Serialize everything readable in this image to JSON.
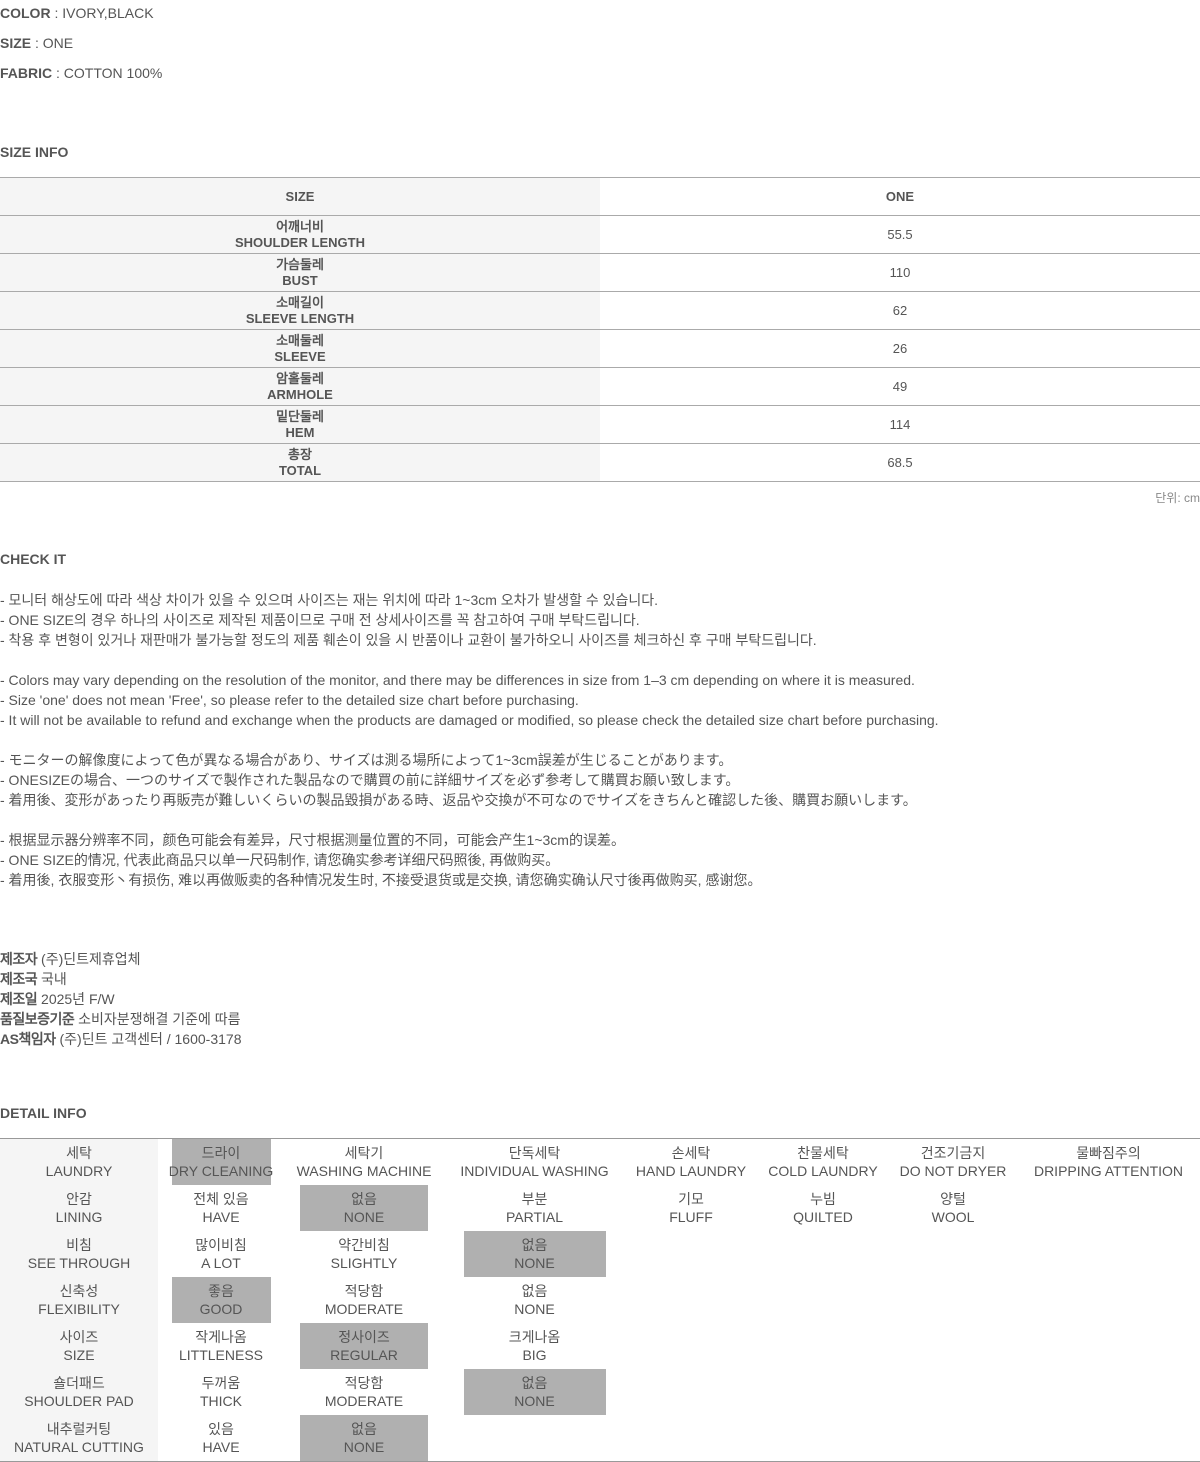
{
  "specs": [
    {
      "label": "COLOR",
      "value": " : IVORY,BLACK"
    },
    {
      "label": "SIZE",
      "value": " : ONE"
    },
    {
      "label": "FABRIC",
      "value": " : COTTON 100%"
    }
  ],
  "size_info": {
    "title": "SIZE INFO",
    "header": [
      "SIZE",
      "ONE"
    ],
    "rows": [
      {
        "ko": "어깨너비",
        "en": "SHOULDER LENGTH",
        "value": "55.5"
      },
      {
        "ko": "가슴둘레",
        "en": "BUST",
        "value": "110"
      },
      {
        "ko": "소매길이",
        "en": "SLEEVE LENGTH",
        "value": "62"
      },
      {
        "ko": "소매둘레",
        "en": "SLEEVE",
        "value": "26"
      },
      {
        "ko": "암홀둘레",
        "en": "ARMHOLE",
        "value": "49"
      },
      {
        "ko": "밑단둘레",
        "en": "HEM",
        "value": "114"
      },
      {
        "ko": "총장",
        "en": "TOTAL",
        "value": "68.5"
      }
    ],
    "unit": "단위: cm"
  },
  "check_it": {
    "title": "CHECK IT",
    "groups": [
      [
        "- 모니터 해상도에 따라 색상 차이가 있을 수 있으며 사이즈는 재는 위치에 따라 1~3cm 오차가 발생할 수 있습니다.",
        "- ONE SIZE의 경우 하나의 사이즈로 제작된 제품이므로 구매 전 상세사이즈를 꼭 참고하여 구매 부탁드립니다.",
        "- 착용 후 변형이 있거나 재판매가 불가능할 정도의 제품 훼손이 있을 시 반품이나 교환이 불가하오니 사이즈를 체크하신 후 구매 부탁드립니다."
      ],
      [
        "- Colors may vary depending on the resolution of the monitor, and there may be differences in size from 1–3 cm depending on where it is measured.",
        "- Size 'one' does not mean 'Free', so please refer to the detailed size chart before purchasing.",
        "- It will not be available to refund and exchange when the products are damaged or modified, so please check the detailed size chart before purchasing."
      ],
      [
        "- モニターの解像度によって色が異なる場合があり、サイズは測る場所によって1~3cm誤差が生じることがあります。",
        "- ONESIZEの場合、一つのサイズで製作された製品なので購買の前に詳細サイズを必ず参考して購買お願い致します。",
        "- 着用後、変形があったり再販売が難しいくらいの製品毀損がある時、返品や交換が不可なのでサイズをきちんと確認した後、購買お願いします。"
      ],
      [
        "- 根据显示器分辨率不同，颜色可能会有差异，尺寸根据测量位置的不同，可能会产生1~3cm的误差。",
        "- ONE SIZE的情况, 代表此商品只以单一尺码制作, 请您确实参考详细尺码照後, 再做购买。",
        "- 着用後, 衣服变形丶有损伤, 难以再做贩卖的各种情况发生时, 不接受退货或是交换, 请您确实确认尺寸後再做购买, 感谢您。"
      ]
    ]
  },
  "manufacturer": [
    {
      "label": "제조자",
      "value": " (주)딘트제휴업체"
    },
    {
      "label": "제조국",
      "value": " 국내"
    },
    {
      "label": "제조일",
      "value": " 2025년 F/W"
    },
    {
      "label": "품질보증기준",
      "value": " 소비자분쟁해결 기준에 따름"
    },
    {
      "label": "AS책임자",
      "value": " (주)딘트 고객센터 / 1600-3178"
    }
  ],
  "detail_info": {
    "title": "DETAIL INFO",
    "rows": [
      {
        "ko": "세탁",
        "en": "LAUNDRY",
        "options": [
          {
            "ko": "드라이",
            "en": "DRY CLEANING",
            "selected": true
          },
          {
            "ko": "세탁기",
            "en": "WASHING MACHINE",
            "selected": false
          },
          {
            "ko": "단독세탁",
            "en": "INDIVIDUAL WASHING",
            "selected": false
          },
          {
            "ko": "손세탁",
            "en": "HAND LAUNDRY",
            "selected": false
          },
          {
            "ko": "찬물세탁",
            "en": "COLD LAUNDRY",
            "selected": false
          },
          {
            "ko": "건조기금지",
            "en": "DO NOT DRYER",
            "selected": false
          },
          {
            "ko": "물빠짐주의",
            "en": "DRIPPING ATTENTION",
            "selected": false
          }
        ]
      },
      {
        "ko": "안감",
        "en": "LINING",
        "options": [
          {
            "ko": "전체 있음",
            "en": "HAVE",
            "selected": false
          },
          {
            "ko": "없음",
            "en": "NONE",
            "selected": true
          },
          {
            "ko": "부분",
            "en": "PARTIAL",
            "selected": false
          },
          {
            "ko": "기모",
            "en": "FLUFF",
            "selected": false
          },
          {
            "ko": "누빔",
            "en": "QUILTED",
            "selected": false
          },
          {
            "ko": "양털",
            "en": "WOOL",
            "selected": false
          }
        ]
      },
      {
        "ko": "비침",
        "en": "SEE THROUGH",
        "options": [
          {
            "ko": "많이비침",
            "en": "A LOT",
            "selected": false
          },
          {
            "ko": "약간비침",
            "en": "SLIGHTLY",
            "selected": false
          },
          {
            "ko": "없음",
            "en": "NONE",
            "selected": true
          }
        ]
      },
      {
        "ko": "신축성",
        "en": "FLEXIBILITY",
        "options": [
          {
            "ko": "좋음",
            "en": "GOOD",
            "selected": true
          },
          {
            "ko": "적당함",
            "en": "MODERATE",
            "selected": false
          },
          {
            "ko": "없음",
            "en": "NONE",
            "selected": false
          }
        ]
      },
      {
        "ko": "사이즈",
        "en": "SIZE",
        "options": [
          {
            "ko": "작게나옴",
            "en": "LITTLENESS",
            "selected": false
          },
          {
            "ko": "정사이즈",
            "en": "REGULAR",
            "selected": true
          },
          {
            "ko": "크게나옴",
            "en": "BIG",
            "selected": false
          }
        ]
      },
      {
        "ko": "숄더패드",
        "en": "SHOULDER PAD",
        "options": [
          {
            "ko": "두꺼움",
            "en": "THICK",
            "selected": false
          },
          {
            "ko": "적당함",
            "en": "MODERATE",
            "selected": false
          },
          {
            "ko": "없음",
            "en": "NONE",
            "selected": true
          }
        ]
      },
      {
        "ko": "내추럴커팅",
        "en": "NATURAL CUTTING",
        "options": [
          {
            "ko": "있음",
            "en": "HAVE",
            "selected": false
          },
          {
            "ko": "없음",
            "en": "NONE",
            "selected": true
          }
        ]
      }
    ]
  }
}
